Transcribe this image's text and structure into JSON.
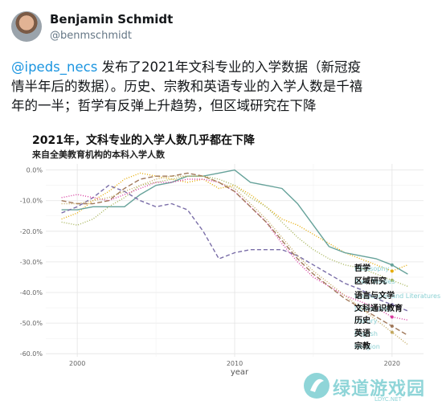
{
  "tweet": {
    "author_name": "Benjamin Schmidt",
    "author_handle": "@benmschmidt",
    "mention": "@ipeds_necs",
    "text_line1": " 发布了2021年文科专业的入学数据（新冠疫",
    "text_line2": "情半年后的数据）。历史、宗教和英语专业的入学人数是千禧",
    "text_line3": "年的一半；哲学有反弹上升趋势，但区域研究在下降"
  },
  "chart": {
    "title": "2021年，文科专业的入学人数几乎都在下降",
    "subtitle": "来自全美教育机构的本科入学人数"
  },
  "chart_data": {
    "type": "line",
    "xlabel": "year",
    "ylabel": "",
    "xlim": [
      1998,
      2022
    ],
    "ylim": [
      -61,
      2
    ],
    "x_ticks": [
      2000,
      2010,
      2020
    ],
    "x_tick_labels": [
      "2000",
      "2010",
      "2020"
    ],
    "y_ticks": [
      0,
      -10,
      -20,
      -30,
      -40,
      -50,
      -60
    ],
    "y_tick_labels": [
      "0.0%",
      "-10.0%",
      "-20.0%",
      "-30.0%",
      "-40.0%",
      "-50.0%",
      "-60.0%"
    ],
    "grid": true,
    "x": [
      1999,
      2000,
      2001,
      2002,
      2003,
      2004,
      2005,
      2006,
      2007,
      2008,
      2009,
      2010,
      2011,
      2012,
      2013,
      2014,
      2015,
      2016,
      2017,
      2018,
      2019,
      2020,
      2021
    ],
    "series": [
      {
        "name": "哲学",
        "color": "#e6ab02",
        "dash": "1,2",
        "values": [
          -16,
          -14,
          -10,
          -7,
          -3,
          -1,
          -2,
          -3,
          -4,
          -3,
          -6,
          -5,
          -8,
          -12,
          -16,
          -18,
          -21,
          -24,
          -27,
          -29,
          -31,
          -33,
          -31
        ]
      },
      {
        "name": "区域研究",
        "color": "#66a29a",
        "dash": "",
        "values": [
          -13,
          -13,
          -12,
          -12,
          -12,
          -8,
          -5,
          -4,
          -2,
          -2,
          -1,
          0,
          -4,
          -5,
          -6,
          -11,
          -18,
          -25,
          -27,
          -28,
          -29,
          -31,
          -34
        ]
      },
      {
        "name": "语言与文学",
        "color": "#a6b45a",
        "dash": "1,2",
        "values": [
          -17,
          -18,
          -16,
          -12,
          -9,
          -5,
          -4,
          -3,
          -2,
          -2,
          -3,
          -5,
          -9,
          -12,
          -17,
          -22,
          -26,
          -29,
          -31,
          -32,
          -34,
          -36,
          -38
        ]
      },
      {
        "name": "文科通识教育",
        "color": "#7a6ea8",
        "dash": "5,3",
        "values": [
          -14,
          -12,
          -9,
          -5,
          -7,
          -10,
          -12,
          -11,
          -13,
          -20,
          -29,
          -27,
          -26,
          -26,
          -26,
          -28,
          -31,
          -34,
          -37,
          -39,
          -42,
          -44,
          -46
        ]
      },
      {
        "name": "历史",
        "color": "#d83a9e",
        "dash": "1,2",
        "values": [
          -9,
          -8,
          -9,
          -10,
          -8,
          -6,
          -4,
          -4,
          -3,
          -3,
          -4,
          -7,
          -12,
          -17,
          -24,
          -30,
          -35,
          -38,
          -41,
          -43,
          -45,
          -48,
          -49
        ]
      },
      {
        "name": "英语",
        "color": "#a0785a",
        "dash": "6,3",
        "values": [
          -10,
          -11,
          -11,
          -10,
          -6,
          -3,
          -2,
          -2,
          -1,
          -2,
          -4,
          -7,
          -12,
          -17,
          -23,
          -29,
          -34,
          -38,
          -42,
          -45,
          -48,
          -51,
          -54
        ]
      },
      {
        "name": "宗教",
        "color": "#c2a75e",
        "dash": "1,2",
        "values": [
          -11,
          -11,
          -10,
          -9,
          -7,
          -5,
          -3,
          -2,
          -2,
          -2,
          -4,
          -6,
          -11,
          -16,
          -22,
          -28,
          -33,
          -37,
          -41,
          -45,
          -49,
          -53,
          -57
        ]
      }
    ],
    "series_label_positions": [
      "哲学",
      "区域研究",
      "语言与文学",
      "文科通识教育",
      "历史",
      "英语",
      "宗教"
    ],
    "faded_english_labels": [
      "Philosophy",
      "Area Studies",
      "Languages and Literatures",
      "Liberal Arts",
      "History",
      "English",
      "Religion"
    ]
  },
  "watermark": {
    "cn": "绿道游戏园",
    "en": "LDYC.NET"
  }
}
